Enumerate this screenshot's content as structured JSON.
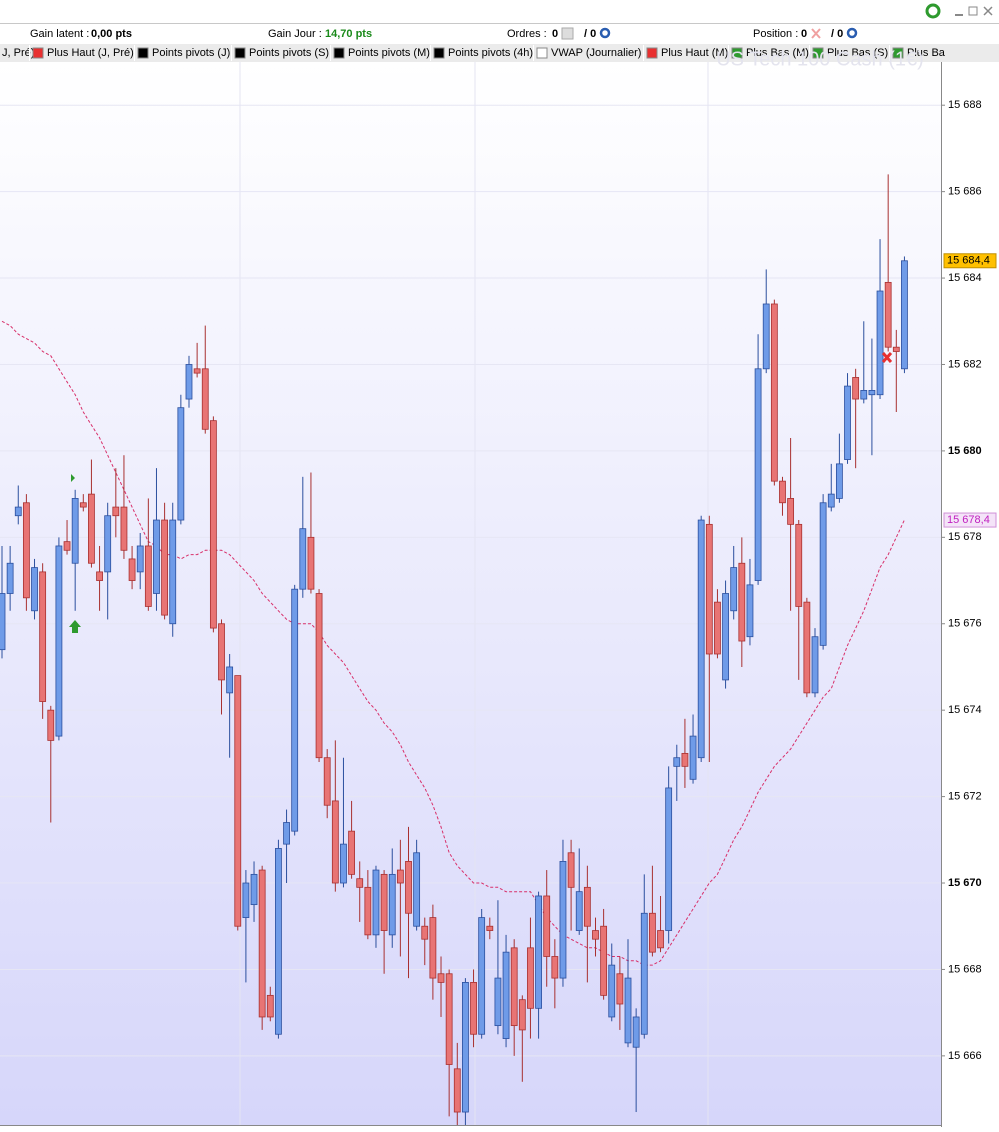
{
  "header": {
    "gain_latent": {
      "label": "Gain latent :",
      "value": "0,00 pts"
    },
    "gain_jour": {
      "label": "Gain Jour :",
      "value": "14,70 pts"
    },
    "ordres": {
      "label": "Ordres :",
      "value": "0",
      "total": "/ 0"
    },
    "position": {
      "label": "Position :",
      "value": "0",
      "total": "/ 0"
    }
  },
  "legend_bar": [
    {
      "label": "J, Pré)"
    },
    {
      "label": "Plus Haut (J, Pré)",
      "color": "#e83030"
    },
    {
      "label": "Points pivots (J)",
      "color": "#000000"
    },
    {
      "label": "Points pivots (S)",
      "color": "#000000"
    },
    {
      "label": "Points pivots (M)",
      "color": "#000000"
    },
    {
      "label": "Points pivots (4h)",
      "color": "#000000"
    },
    {
      "label": "VWAP (Journalier)",
      "color": "#ffffff"
    },
    {
      "label": "Plus Haut (M)",
      "color": "#e83030"
    },
    {
      "label": "Plus Bas (M)",
      "color": "#2e9a2e"
    },
    {
      "label": "Plus Bas (S)",
      "color": "#2e9a2e"
    },
    {
      "label": "Plus Ba",
      "color": "#2e9a2e"
    }
  ],
  "watermark": "US Tech 100 Cash (1€)",
  "chart_data": {
    "type": "candlestick",
    "up_color": "#6f9be8",
    "down_color": "#e87474",
    "ylim": [
      15664.4,
      15689
    ],
    "yticks": [
      {
        "value": 15666,
        "label": "15 666"
      },
      {
        "value": 15668,
        "label": "15 668"
      },
      {
        "value": 15670,
        "label": "15 670"
      },
      {
        "value": 15672,
        "label": "15 672"
      },
      {
        "value": 15674,
        "label": "15 674"
      },
      {
        "value": 15676,
        "label": "15 676"
      },
      {
        "value": 15678,
        "label": "15 678"
      },
      {
        "value": 15680,
        "label": "15 680"
      },
      {
        "value": 15682,
        "label": "15 682"
      },
      {
        "value": 15684,
        "label": "15 684"
      },
      {
        "value": 15686,
        "label": "15 686"
      },
      {
        "value": 15688,
        "label": "15 688"
      }
    ],
    "grid": true,
    "open": [
      15675.4,
      15676.7,
      15678.5,
      15678.8,
      15676.3,
      15677.2,
      15674.0,
      15673.4,
      15677.9,
      15677.4,
      15678.8,
      15679.0,
      15677.2,
      15677.2,
      15678.7,
      15678.7,
      15677.5,
      15677.2,
      15677.8,
      15676.7,
      15678.4,
      15676.0,
      15678.4,
      15681.2,
      15681.9,
      15681.9,
      15680.7,
      15676.0,
      15674.4,
      15674.8,
      15669.2,
      15669.5,
      15670.3,
      15667.4,
      15666.5,
      15670.9,
      15671.2,
      15676.8,
      15678.0,
      15676.7,
      15672.9,
      15671.9,
      15670.0,
      15671.2,
      15670.1,
      15669.9,
      15668.8,
      15670.2,
      15668.8,
      15670.3,
      15670.5,
      15669.0,
      15669.0,
      15669.2,
      15667.9,
      15667.9,
      15665.7,
      15664.7,
      15667.7,
      15666.5,
      15669.0,
      15666.7,
      15666.4,
      15668.5,
      15667.3,
      15668.5,
      15667.1,
      15669.7,
      15668.3,
      15667.8,
      15670.7,
      15668.9,
      15669.9,
      15668.9,
      15669.0,
      15666.9,
      15667.9,
      15666.3,
      15666.2,
      15666.5,
      15669.3,
      15668.9,
      15668.9,
      15672.7,
      15673.0,
      15672.4,
      15672.9,
      15678.3,
      15676.5,
      15674.7,
      15676.3,
      15677.4,
      15675.7,
      15677.0,
      15681.9,
      15683.4,
      15679.3,
      15678.9,
      15678.3,
      15676.5,
      15674.4,
      15675.5,
      15678.7,
      15678.9,
      15679.8,
      15681.7,
      15681.2,
      15681.3,
      15681.3,
      15683.9,
      15682.4,
      15681.9
    ],
    "high": [
      15677.8,
      15677.8,
      15679.2,
      15679.0,
      15677.5,
      15677.4,
      15674.1,
      15678.0,
      15678.4,
      15679.1,
      15679.0,
      15679.8,
      15677.8,
      15678.8,
      15679.6,
      15679.9,
      15677.8,
      15678.1,
      15678.9,
      15679.6,
      15678.8,
      15678.8,
      15681.3,
      15682.2,
      15682.5,
      15682.9,
      15680.8,
      15676.1,
      15675.3,
      15674.8,
      15670.3,
      15670.5,
      15670.4,
      15667.6,
      15671.0,
      15671.7,
      15676.9,
      15679.4,
      15679.5,
      15676.8,
      15673.1,
      15673.3,
      15672.9,
      15671.9,
      15670.5,
      15670.3,
      15670.4,
      15670.3,
      15670.8,
      15671.0,
      15671.3,
      15671.0,
      15669.2,
      15669.5,
      15668.3,
      15668.0,
      15666.3,
      15667.8,
      15668.0,
      15669.4,
      15669.2,
      15669.6,
      15668.8,
      15668.7,
      15667.4,
      15669.2,
      15669.8,
      15670.3,
      15668.7,
      15671.0,
      15671.0,
      15670.8,
      15670.4,
      15669.2,
      15669.4,
      15668.6,
      15668.3,
      15668.7,
      15667.1,
      15670.2,
      15670.4,
      15669.7,
      15672.7,
      15673.2,
      15673.8,
      15673.9,
      15678.5,
      15678.5,
      15676.8,
      15677.0,
      15677.8,
      15678.0,
      15677.5,
      15682.7,
      15684.2,
      15683.5,
      15679.4,
      15680.3,
      15678.4,
      15676.6,
      15675.9,
      15679.0,
      15679.7,
      15680.4,
      15681.8,
      15681.9,
      15683.0,
      15682.6,
      15684.9,
      15686.4,
      15682.8,
      15684.5
    ],
    "low": [
      15675.2,
      15676.3,
      15678.3,
      15676.3,
      15676.1,
      15673.8,
      15671.4,
      15673.3,
      15677.6,
      15676.3,
      15678.6,
      15677.3,
      15676.3,
      15676.1,
      15678.0,
      15677.5,
      15676.8,
      15676.8,
      15676.3,
      15676.3,
      15676.1,
      15675.7,
      15678.3,
      15681.0,
      15681.7,
      15680.4,
      15675.8,
      15673.9,
      15672.9,
      15668.9,
      15667.7,
      15669.1,
      15666.6,
      15666.8,
      15666.4,
      15670.0,
      15671.1,
      15676.6,
      15676.7,
      15672.8,
      15671.5,
      15669.8,
      15669.9,
      15670.1,
      15669.1,
      15668.7,
      15668.5,
      15667.9,
      15668.5,
      15668.3,
      15667.8,
      15668.9,
      15668.1,
      15667.3,
      15666.9,
      15664.6,
      15664.4,
      15664.4,
      15666.2,
      15666.4,
      15668.7,
      15666.5,
      15666.2,
      15666.0,
      15665.4,
      15666.4,
      15666.4,
      15667.6,
      15667.1,
      15667.6,
      15668.9,
      15668.8,
      15667.7,
      15668.3,
      15667.3,
      15666.8,
      15666.6,
      15666.2,
      15664.7,
      15666.4,
      15668.3,
      15668.4,
      15668.6,
      15671.9,
      15672.2,
      15672.3,
      15672.8,
      15672.8,
      15675.2,
      15674.5,
      15676.1,
      15675.0,
      15675.5,
      15676.9,
      15681.8,
      15679.2,
      15678.5,
      15676.3,
      15674.7,
      15674.3,
      15674.3,
      15675.4,
      15678.6,
      15678.8,
      15679.7,
      15679.6,
      15681.1,
      15679.9,
      15681.2,
      15682.3,
      15680.9,
      15681.8
    ],
    "close": [
      15676.7,
      15677.4,
      15678.7,
      15676.6,
      15677.3,
      15674.2,
      15673.3,
      15677.8,
      15677.7,
      15678.9,
      15678.7,
      15677.4,
      15677.0,
      15678.5,
      15678.5,
      15677.7,
      15677.0,
      15677.8,
      15676.4,
      15678.4,
      15676.2,
      15678.4,
      15681.0,
      15682.0,
      15681.8,
      15680.5,
      15675.9,
      15674.7,
      15675.0,
      15669.0,
      15670.0,
      15670.2,
      15666.9,
      15666.9,
      15670.8,
      15671.4,
      15676.8,
      15678.2,
      15676.8,
      15672.9,
      15671.8,
      15670.0,
      15670.9,
      15670.2,
      15669.9,
      15668.8,
      15670.3,
      15668.9,
      15670.2,
      15670.0,
      15669.3,
      15670.7,
      15668.7,
      15667.8,
      15667.7,
      15665.8,
      15664.7,
      15667.7,
      15666.5,
      15669.2,
      15668.9,
      15667.8,
      15668.4,
      15666.7,
      15666.6,
      15667.1,
      15669.7,
      15668.3,
      15667.8,
      15670.5,
      15669.9,
      15669.8,
      15669.0,
      15668.7,
      15667.4,
      15668.1,
      15667.2,
      15667.8,
      15666.9,
      15669.3,
      15668.4,
      15668.5,
      15672.2,
      15672.9,
      15672.7,
      15673.4,
      15678.4,
      15675.3,
      15675.3,
      15676.7,
      15677.3,
      15675.6,
      15676.9,
      15681.9,
      15683.4,
      15679.3,
      15678.8,
      15678.3,
      15676.4,
      15674.4,
      15675.7,
      15678.8,
      15679.0,
      15679.7,
      15681.5,
      15681.2,
      15681.4,
      15681.4,
      15683.7,
      15682.4,
      15682.3,
      15684.4
    ],
    "line": {
      "color": "#d8306a",
      "values": [
        15683.0,
        15682.9,
        15682.7,
        15682.6,
        15682.5,
        15682.3,
        15682.2,
        15681.9,
        15681.6,
        15681.3,
        15680.9,
        15680.6,
        15680.3,
        15679.9,
        15679.5,
        15679.1,
        15678.7,
        15678.3,
        15677.9,
        15677.8,
        15677.6,
        15677.6,
        15677.5,
        15677.6,
        15677.6,
        15677.7,
        15677.7,
        15677.7,
        15677.6,
        15677.4,
        15677.2,
        15677.0,
        15676.7,
        15676.5,
        15676.3,
        15676.1,
        15676.0,
        15676.0,
        15676.0,
        15675.8,
        15675.5,
        15675.3,
        15675.1,
        15674.8,
        15674.5,
        15674.2,
        15674.0,
        15673.7,
        15673.5,
        15673.2,
        15672.8,
        15672.5,
        15672.2,
        15671.8,
        15671.3,
        15670.7,
        15670.4,
        15670.2,
        15670.0,
        15670.0,
        15669.9,
        15669.9,
        15669.8,
        15669.8,
        15669.8,
        15669.8,
        15669.5,
        15669.2,
        15669.0,
        15668.8,
        15668.7,
        15668.6,
        15668.5,
        15668.5,
        15668.4,
        15668.3,
        15668.3,
        15668.2,
        15668.2,
        15668.1,
        15668.1,
        15668.2,
        15668.5,
        15668.8,
        15669.1,
        15669.4,
        15669.7,
        15670.0,
        15670.2,
        15670.6,
        15671.0,
        15671.3,
        15671.7,
        15672.1,
        15672.4,
        15672.7,
        15672.9,
        15673.1,
        15673.4,
        15673.7,
        15674.0,
        15674.3,
        15674.5,
        15675.0,
        15675.5,
        15675.9,
        15676.3,
        15676.8,
        15677.3,
        15677.6,
        15678.0,
        15678.4
      ]
    },
    "price_labels": [
      {
        "value": 15684.4,
        "label": "15 684,4",
        "color": "#ffc000",
        "text_color": "#000000"
      },
      {
        "value": 15678.4,
        "label": "15 678,4",
        "color": "#f4e4f8",
        "text_color": "#c020c0"
      }
    ]
  }
}
